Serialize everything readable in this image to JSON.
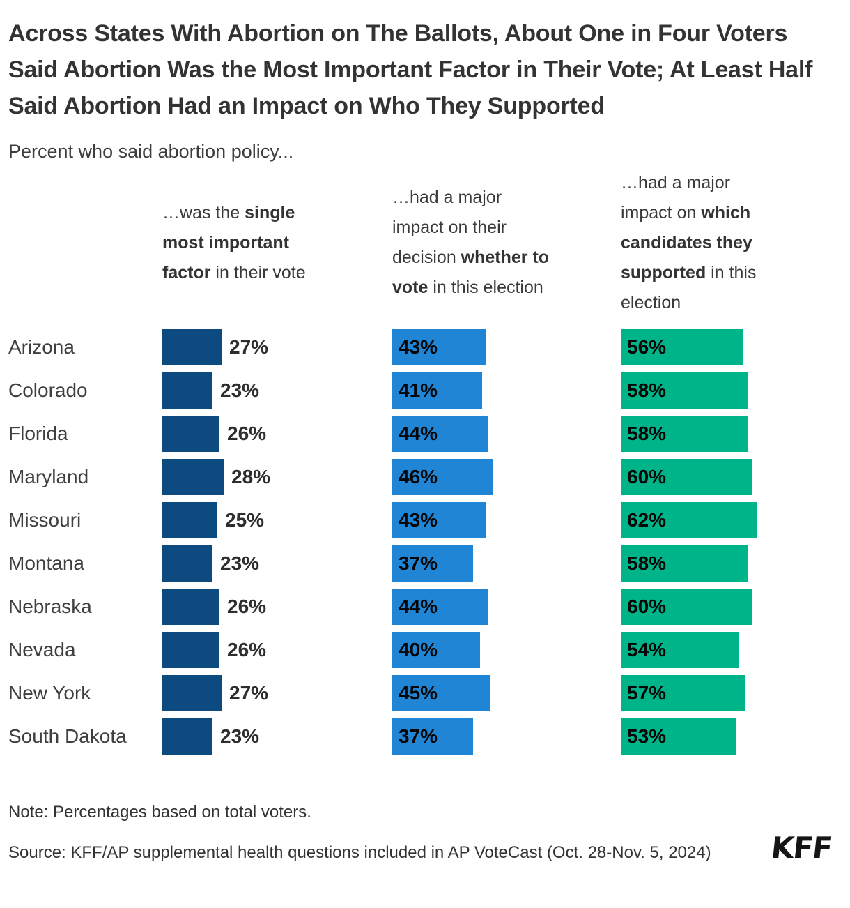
{
  "title": "Across States With Abortion on The Ballots, About One in Four Voters Said Abortion Was the Most Important Factor in Their Vote; At Least Half Said Abortion Had an Impact on Who They Supported",
  "subtitle": "Percent who said abortion policy...",
  "note": "Note: Percentages based on total voters.",
  "source": "Source: KFF/AP supplemental health questions included in AP VoteCast (Oct. 28-Nov. 5, 2024)",
  "logo_text": "KFF",
  "colors": {
    "navy": "#0D4A80",
    "blue": "#2185D6",
    "green": "#00B489",
    "title_text": "#333333",
    "value_text": "#050505"
  },
  "chart_data": {
    "type": "bar",
    "orientation": "horizontal",
    "unit": "%",
    "xlim": [
      0,
      100
    ],
    "grid": false,
    "legend_position": "column-headers",
    "categories": [
      "Arizona",
      "Colorado",
      "Florida",
      "Maryland",
      "Missouri",
      "Montana",
      "Nebraska",
      "Nevada",
      "New York",
      "South Dakota"
    ],
    "series": [
      {
        "name": "…was the single most important factor in their vote",
        "color": "#0D4A80",
        "label_position": "outside",
        "values": [
          27,
          23,
          26,
          28,
          25,
          23,
          26,
          26,
          27,
          23
        ],
        "header_segments": [
          {
            "t": "…was the ",
            "b": false
          },
          {
            "t": "single\nmost important\nfactor",
            "b": true
          },
          {
            "t": " in their vote",
            "b": false
          }
        ]
      },
      {
        "name": "…had a major impact on their decision whether to vote in this election",
        "color": "#2185D6",
        "label_position": "inside",
        "values": [
          43,
          41,
          44,
          46,
          43,
          37,
          44,
          40,
          45,
          37
        ],
        "header_segments": [
          {
            "t": "…had a major\nimpact on their\ndecision ",
            "b": false
          },
          {
            "t": "whether to\nvote",
            "b": true
          },
          {
            "t": " in this election",
            "b": false
          }
        ]
      },
      {
        "name": "…had a major impact on which candidates they supported in this election",
        "color": "#00B489",
        "label_position": "inside",
        "values": [
          56,
          58,
          58,
          60,
          62,
          58,
          60,
          54,
          57,
          53
        ],
        "header_segments": [
          {
            "t": "…had a major\nimpact on ",
            "b": false
          },
          {
            "t": "which\ncandidates they\nsupported",
            "b": true
          },
          {
            "t": " in this\nelection",
            "b": false
          }
        ]
      }
    ]
  }
}
